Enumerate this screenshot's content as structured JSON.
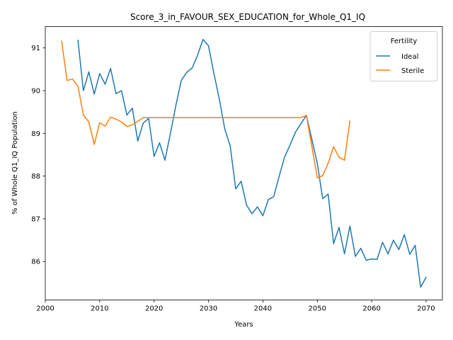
{
  "chart_data": {
    "type": "line",
    "title": "Score_3_in_FAVOUR_SEX_EDUCATION_for_Whole_Q1_IQ",
    "xlabel": "Years",
    "ylabel": "% of Whole Q1_IQ Population",
    "xlim": [
      2000,
      2073
    ],
    "ylim": [
      85.1,
      91.5
    ],
    "xticks": [
      2000,
      2010,
      2020,
      2030,
      2040,
      2050,
      2060,
      2070
    ],
    "yticks": [
      86,
      87,
      88,
      89,
      90,
      91
    ],
    "grid": false,
    "legend": {
      "title": "Fertility",
      "position": "top-right"
    },
    "series": [
      {
        "name": "Ideal",
        "color": "#1f77b4",
        "x": [
          2006,
          2007,
          2008,
          2009,
          2010,
          2011,
          2012,
          2013,
          2014,
          2015,
          2016,
          2017,
          2018,
          2019,
          2020,
          2021,
          2022,
          2023,
          2024,
          2025,
          2026,
          2027,
          2028,
          2029,
          2030,
          2031,
          2032,
          2033,
          2034,
          2035,
          2036,
          2037,
          2038,
          2039,
          2040,
          2041,
          2042,
          2043,
          2044,
          2045,
          2046,
          2047,
          2048,
          2049,
          2050,
          2051,
          2052,
          2053,
          2054,
          2055,
          2056,
          2057,
          2058,
          2059,
          2060,
          2061,
          2062,
          2063,
          2064,
          2065,
          2066,
          2067,
          2068,
          2069,
          2070
        ],
        "values": [
          91.18,
          90.0,
          90.44,
          89.92,
          90.4,
          90.15,
          90.52,
          89.93,
          90.0,
          89.43,
          89.59,
          88.82,
          89.24,
          89.35,
          88.46,
          88.78,
          88.37,
          89.0,
          89.65,
          90.24,
          90.43,
          90.53,
          90.83,
          91.2,
          91.05,
          90.4,
          89.8,
          89.1,
          88.7,
          87.7,
          87.88,
          87.32,
          87.12,
          87.28,
          87.07,
          87.45,
          87.52,
          88.0,
          88.45,
          88.73,
          89.03,
          89.23,
          89.42,
          88.86,
          88.3,
          87.47,
          87.58,
          86.42,
          86.8,
          86.18,
          86.83,
          86.12,
          86.31,
          86.03,
          86.06,
          86.05,
          86.45,
          86.18,
          86.5,
          86.28,
          86.63,
          86.17,
          86.38,
          85.4,
          85.63
        ]
      },
      {
        "name": "Sterile",
        "color": "#ff7f0e",
        "x": [
          2003,
          2004,
          2005,
          2006,
          2007,
          2008,
          2009,
          2010,
          2011,
          2012,
          2013,
          2014,
          2015,
          2016,
          2017,
          2018,
          2019,
          2020,
          2021,
          2022,
          2023,
          2024,
          2025,
          2026,
          2027,
          2028,
          2029,
          2030,
          2031,
          2032,
          2033,
          2034,
          2035,
          2036,
          2037,
          2038,
          2039,
          2040,
          2041,
          2042,
          2043,
          2044,
          2045,
          2046,
          2047,
          2048,
          2049,
          2050,
          2051,
          2052,
          2053,
          2054,
          2055,
          2056
        ],
        "values": [
          91.16,
          90.24,
          90.27,
          90.11,
          89.43,
          89.27,
          88.74,
          89.25,
          89.17,
          89.38,
          89.33,
          89.27,
          89.16,
          89.2,
          89.28,
          89.37,
          89.37,
          89.37,
          89.37,
          89.37,
          89.37,
          89.37,
          89.37,
          89.37,
          89.37,
          89.37,
          89.37,
          89.37,
          89.37,
          89.37,
          89.37,
          89.37,
          89.37,
          89.37,
          89.37,
          89.37,
          89.37,
          89.37,
          89.37,
          89.37,
          89.37,
          89.37,
          89.37,
          89.37,
          89.37,
          89.42,
          88.7,
          87.96,
          88.01,
          88.3,
          88.69,
          88.44,
          88.37,
          89.29
        ]
      }
    ]
  }
}
